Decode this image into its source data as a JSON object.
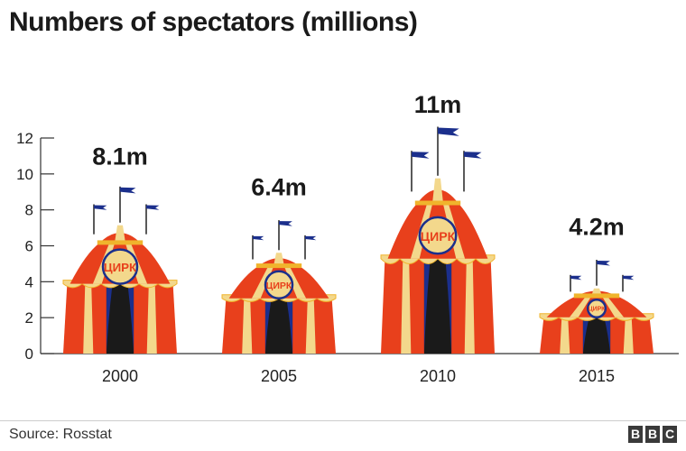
{
  "title": "Numbers of spectators (millions)",
  "chart_data": {
    "type": "bar",
    "categories": [
      "2000",
      "2005",
      "2010",
      "2015"
    ],
    "values": [
      8.1,
      6.4,
      11,
      4.2
    ],
    "value_labels": [
      "8.1m",
      "6.4m",
      "11m",
      "4.2m"
    ],
    "ylim": [
      0,
      12
    ],
    "yticks": [
      "0",
      "2",
      "4",
      "6",
      "8",
      "10",
      "12"
    ],
    "xlabel": "",
    "ylabel": "",
    "bar_style": "circus tent pictogram"
  },
  "tent_sign": "ЦИРК",
  "source": "Source: Rosstat",
  "logo": "BBC",
  "colors": {
    "red": "#e8401c",
    "cream": "#f3d88c",
    "gold": "#f0b42c",
    "blue": "#1b2f8c",
    "dark": "#1a1a1a"
  }
}
